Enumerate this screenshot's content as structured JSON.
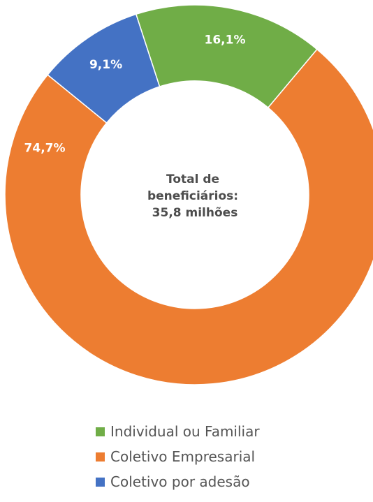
{
  "chart_data": {
    "type": "pie",
    "donut": true,
    "center_text": [
      "Total de",
      "beneficiários:",
      "35,8 milhões"
    ],
    "slices": [
      {
        "name": "Coletivo Empresarial",
        "value": 74.7,
        "label": "74,7%",
        "color": "#ED7D31"
      },
      {
        "name": "Coletivo por adesão",
        "value": 9.1,
        "label": "9,1%",
        "color": "#4472C4"
      },
      {
        "name": "Individual ou Familiar",
        "value": 16.1,
        "label": "16,1%",
        "color": "#70AD47"
      }
    ],
    "legend": {
      "placement": "bottom",
      "items": [
        {
          "label": "Individual ou Familiar",
          "color": "#70AD47"
        },
        {
          "label": "Coletivo Empresarial",
          "color": "#ED7D31"
        },
        {
          "label": "Coletivo por adesão",
          "color": "#4472C4"
        }
      ]
    }
  }
}
